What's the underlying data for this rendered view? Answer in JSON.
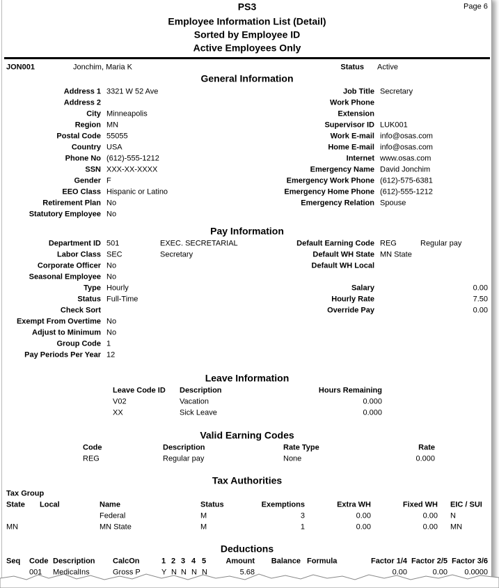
{
  "header": {
    "company": "PS3",
    "title": "Employee Information List (Detail)",
    "sort": "Sorted by Employee ID",
    "filter": "Active Employees Only",
    "page": "Page 6"
  },
  "employee": {
    "id": "JON001",
    "name": "Jonchim, Maria K",
    "status_label": "Status",
    "status": "Active"
  },
  "general": {
    "title": "General Information",
    "left": [
      [
        "Address 1",
        "3321 W 52 Ave"
      ],
      [
        "Address 2"
      ],
      [
        "City",
        "Minneapolis"
      ],
      [
        "Region",
        "MN"
      ],
      [
        "Postal Code",
        "55055"
      ],
      [
        "Country",
        "USA"
      ],
      [
        "Phone No",
        "(612)-555-1212"
      ],
      [
        "SSN",
        "XXX-XX-XXXX"
      ],
      [
        "Gender",
        "F"
      ],
      [
        "EEO Class",
        "Hispanic or Latino"
      ],
      [
        "Retirement Plan",
        "No"
      ],
      [
        "Statutory Employee",
        "No"
      ]
    ],
    "right": [
      [
        "Job Title",
        "Secretary"
      ],
      [
        "Work Phone"
      ],
      [
        "Extension"
      ],
      [
        "Supervisor ID",
        "LUK001"
      ],
      [
        "Work E-mail",
        "info@osas.com"
      ],
      [
        "Home E-mail",
        "info@osas.com"
      ],
      [
        "Internet",
        "www.osas.com"
      ],
      [
        "Emergency Name",
        "David Jonchim"
      ],
      [
        "Emergency Work Phone",
        "(612)-575-6381"
      ],
      [
        "Emergency Home Phone",
        "(612)-555-1212"
      ],
      [
        "Emergency Relation",
        "Spouse"
      ]
    ]
  },
  "pay": {
    "title": "Pay Information",
    "left": [
      [
        "Department ID",
        "501",
        "EXEC. SECRETARIAL"
      ],
      [
        "Labor Class",
        "SEC",
        "Secretary"
      ],
      [
        "Corporate Officer",
        "No"
      ],
      [
        "Seasonal Employee",
        "No"
      ],
      [
        "Type",
        "Hourly"
      ],
      [
        "Status",
        "Full-Time"
      ],
      [
        "Check Sort"
      ],
      [
        "Exempt From Overtime",
        "No"
      ],
      [
        "Adjust to Minimum",
        "No"
      ],
      [
        "Group Code",
        "1"
      ],
      [
        "Pay Periods Per Year",
        "12"
      ]
    ],
    "right": [
      [
        "Default Earning Code",
        "REG",
        "Regular pay"
      ],
      [
        "Default WH State",
        "MN State"
      ],
      [
        "Default WH Local"
      ]
    ],
    "amounts": [
      [
        "Salary",
        "0.00"
      ],
      [
        "Hourly Rate",
        "7.50"
      ],
      [
        "Override Pay",
        "0.00"
      ]
    ]
  },
  "leave": {
    "title": "Leave Information",
    "headers": [
      "Leave Code ID",
      "Description",
      "Hours Remaining"
    ],
    "rows": [
      [
        "V02",
        "Vacation",
        "0.000"
      ],
      [
        "XX",
        "Sick Leave",
        "0.000"
      ]
    ]
  },
  "earning_codes": {
    "title": "Valid Earning Codes",
    "headers": [
      "Code",
      "Description",
      "Rate Type",
      "Rate"
    ],
    "rows": [
      [
        "REG",
        "Regular pay",
        "None",
        "0.000"
      ]
    ]
  },
  "tax": {
    "title": "Tax Authorities",
    "group_label": "Tax Group",
    "headers": [
      "State",
      "Local",
      "Name",
      "Status",
      "Exemptions",
      "Extra WH",
      "Fixed WH",
      "EIC / SUI"
    ],
    "rows": [
      [
        null,
        null,
        "Federal",
        "M",
        "3",
        "0.00",
        "0.00",
        "N"
      ],
      [
        "MN",
        null,
        "MN State",
        "M",
        "1",
        "0.00",
        "0.00",
        "MN"
      ]
    ]
  },
  "deductions": {
    "title": "Deductions",
    "headers": [
      "Seq",
      "Code",
      "Description",
      "CalcOn",
      "1",
      "2",
      "3",
      "4",
      "5",
      "Amount",
      "Balance",
      "Formula",
      "Factor 1/4",
      "Factor 2/5",
      "Factor 3/6"
    ],
    "rows": [
      [
        null,
        "001",
        "MedicalIns",
        "Gross P",
        "Y",
        "N",
        "N",
        "N",
        "N",
        "5.68",
        null,
        null,
        "0.00",
        "0.00",
        "0.0000"
      ]
    ]
  }
}
